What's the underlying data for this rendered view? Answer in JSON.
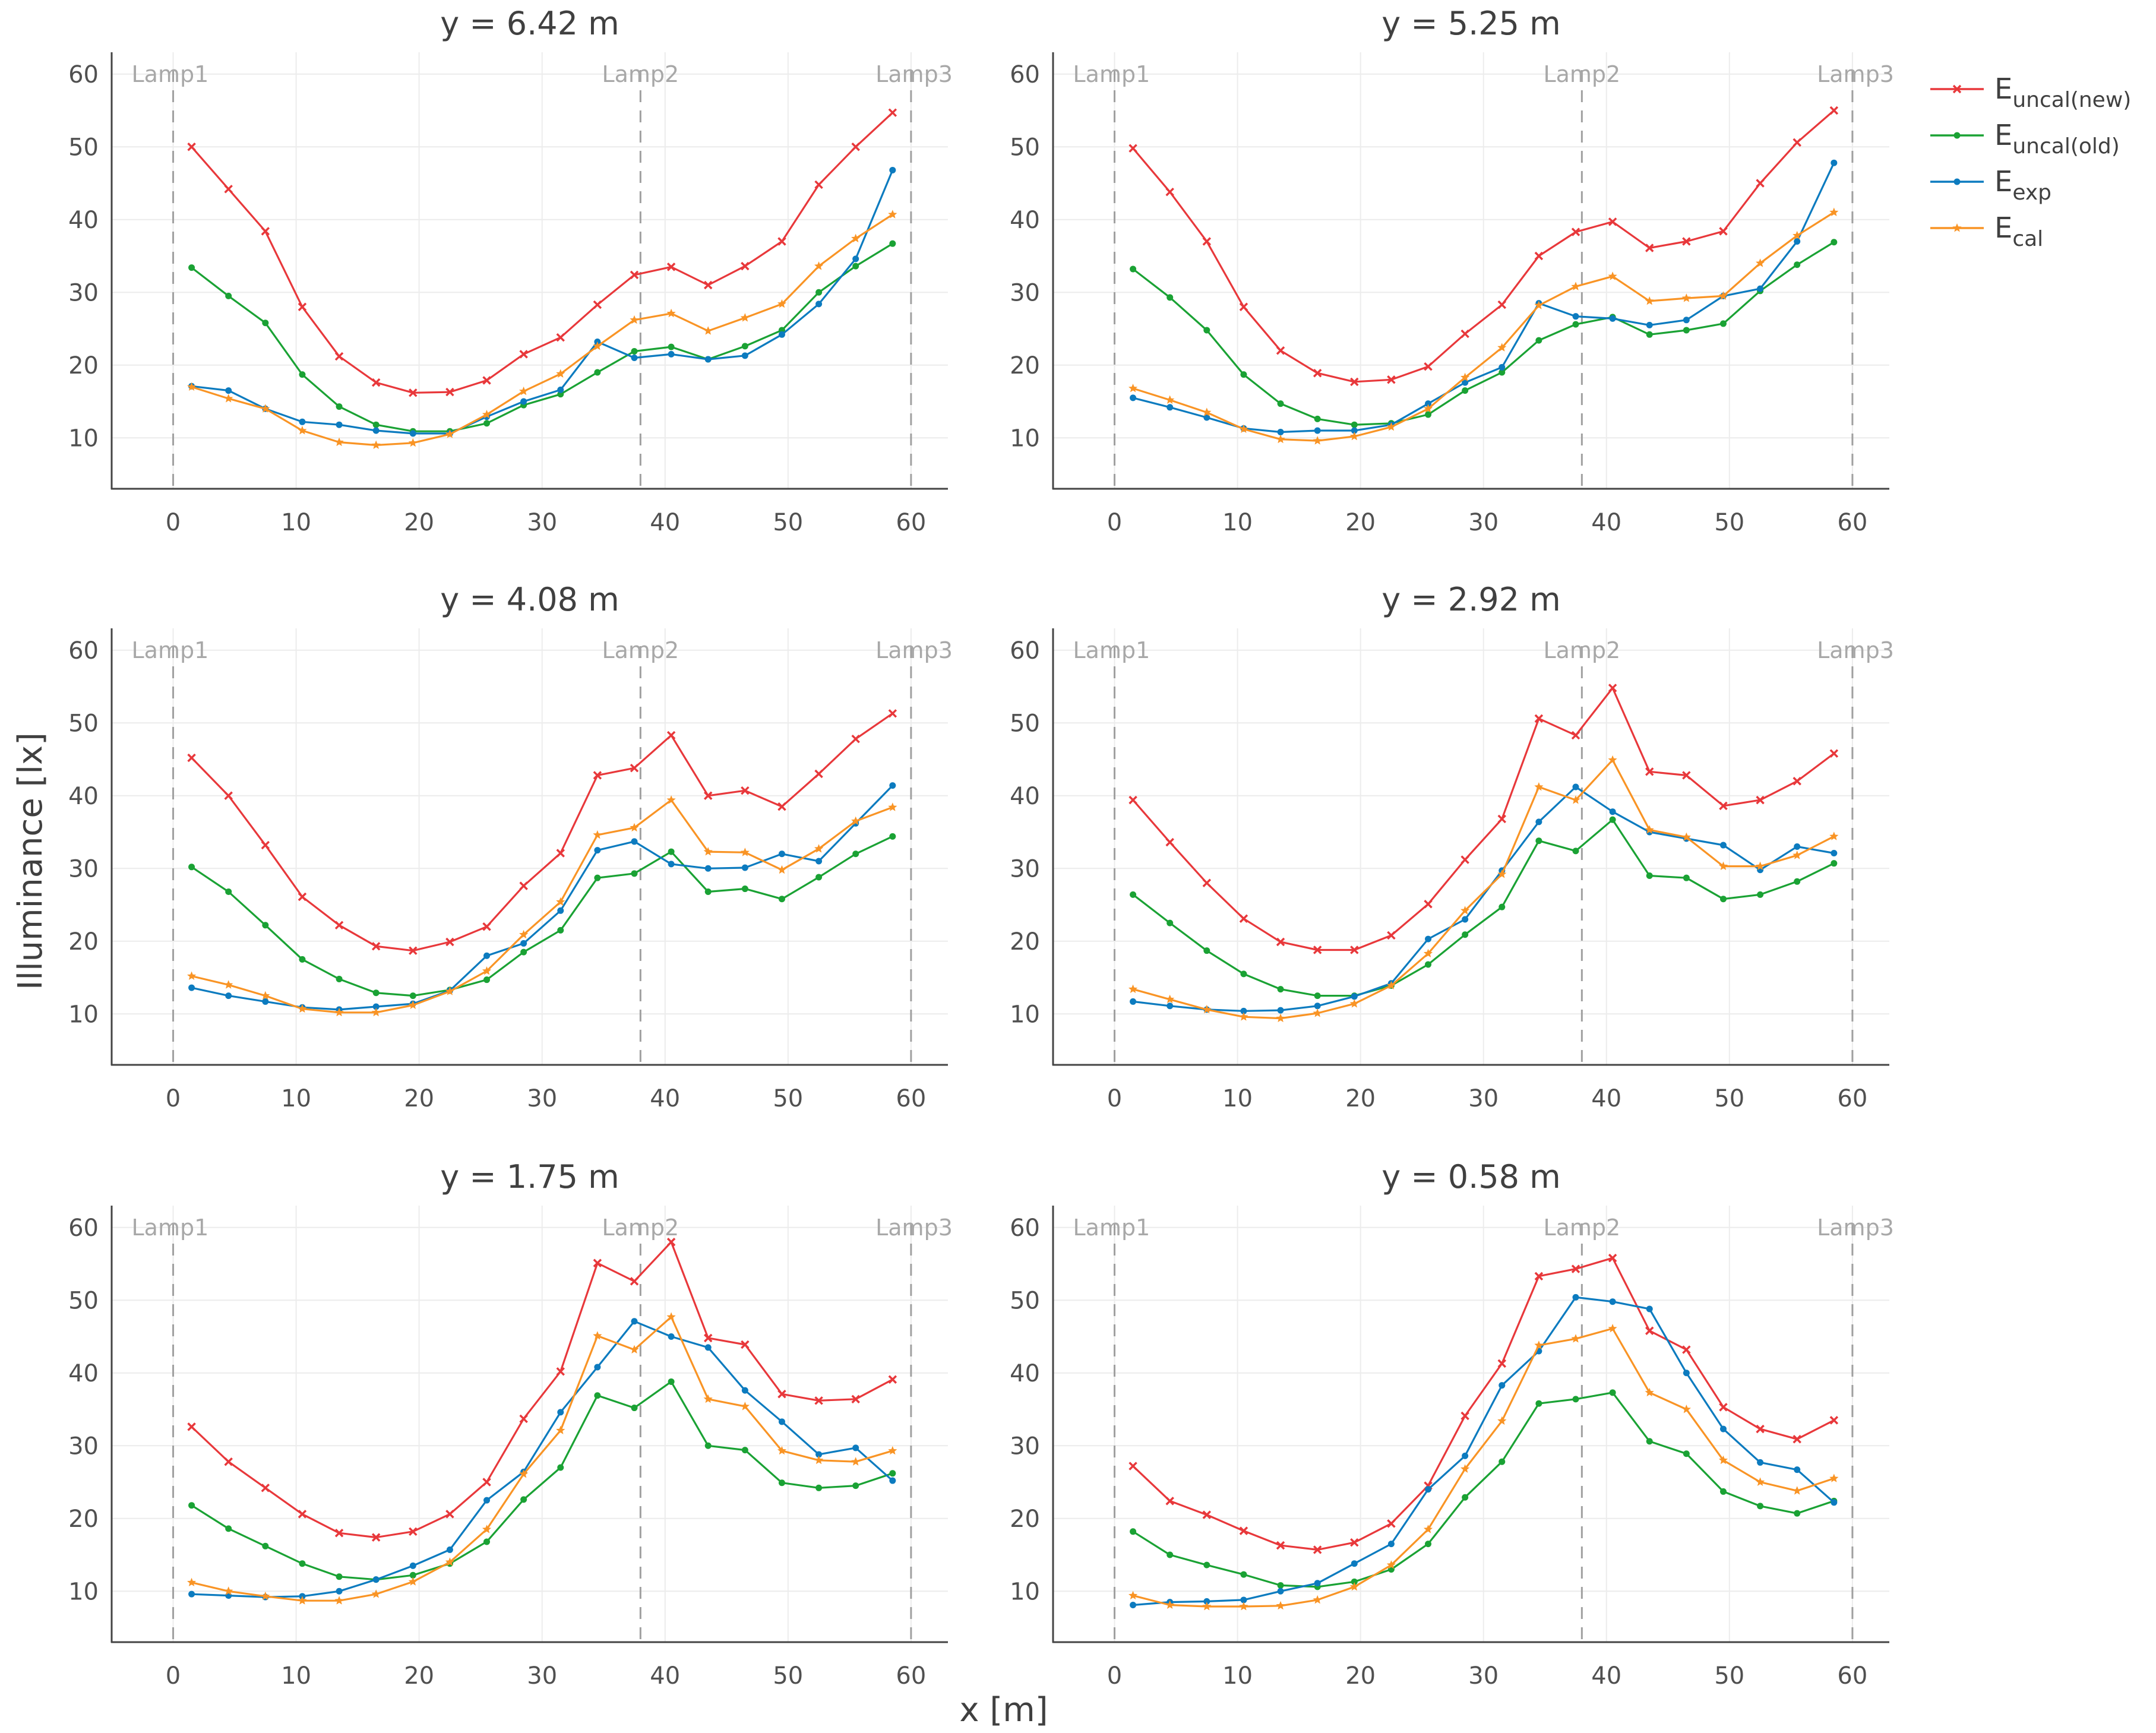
{
  "chart_data": {
    "type": "line",
    "xlabel": "x [m]",
    "ylabel": "Illuminance [lx]",
    "xlim": [
      -5,
      63
    ],
    "ylim": [
      3,
      63
    ],
    "xticks": [
      0,
      10,
      20,
      30,
      40,
      50,
      60
    ],
    "yticks": [
      10,
      20,
      30,
      40,
      50,
      60
    ],
    "lamps": [
      {
        "label": "Lamp1",
        "x": 0
      },
      {
        "label": "Lamp2",
        "x": 38
      },
      {
        "label": "Lamp3",
        "x": 60
      }
    ],
    "x": [
      1.5,
      4.5,
      7.5,
      10.5,
      13.5,
      16.5,
      19.5,
      22.5,
      25.5,
      28.5,
      31.5,
      34.5,
      37.5,
      40.5,
      43.5,
      46.5,
      49.5,
      52.5,
      55.5,
      58.5
    ],
    "series_meta": [
      {
        "key": "uncal_new",
        "base": "E",
        "sub": "uncal(new)",
        "color": "#e8383b",
        "marker": "x"
      },
      {
        "key": "uncal_old",
        "base": "E",
        "sub": "uncal(old)",
        "color": "#1aa234",
        "marker": "dot"
      },
      {
        "key": "exp",
        "base": "E",
        "sub": "exp",
        "color": "#0c7bbf",
        "marker": "dot"
      },
      {
        "key": "cal",
        "base": "E",
        "sub": "cal",
        "color": "#f99425",
        "marker": "star"
      }
    ],
    "panels": [
      {
        "title": "y = 6.42 m",
        "series": {
          "uncal_new": [
            50.0,
            44.2,
            38.4,
            28.0,
            21.2,
            17.6,
            16.2,
            16.3,
            17.9,
            21.5,
            23.8,
            28.3,
            32.4,
            33.5,
            31.0,
            33.6,
            37.0,
            44.8,
            50.0,
            54.7
          ],
          "uncal_old": [
            33.4,
            29.5,
            25.8,
            18.7,
            14.3,
            11.8,
            10.9,
            10.9,
            12.0,
            14.5,
            16.0,
            19.0,
            21.9,
            22.5,
            20.8,
            22.6,
            24.8,
            30.0,
            33.6,
            36.7
          ],
          "exp": [
            17.1,
            16.5,
            14.0,
            12.2,
            11.8,
            11.0,
            10.6,
            10.6,
            12.9,
            15.0,
            16.6,
            23.2,
            21.0,
            21.5,
            20.8,
            21.3,
            24.2,
            28.4,
            34.6,
            46.8
          ],
          "cal": [
            17.0,
            15.4,
            14.0,
            11.0,
            9.4,
            9.0,
            9.3,
            10.5,
            13.2,
            16.4,
            18.8,
            22.6,
            26.2,
            27.1,
            24.7,
            26.5,
            28.4,
            33.6,
            37.4,
            40.7
          ]
        }
      },
      {
        "title": "y = 5.25 m",
        "series": {
          "uncal_new": [
            49.8,
            43.8,
            37.0,
            28.0,
            22.0,
            18.9,
            17.7,
            18.0,
            19.8,
            24.3,
            28.3,
            35.0,
            38.3,
            39.7,
            36.1,
            37.0,
            38.4,
            45.0,
            50.6,
            55.0
          ],
          "uncal_old": [
            33.2,
            29.3,
            24.8,
            18.7,
            14.7,
            12.6,
            11.8,
            12.0,
            13.2,
            16.5,
            19.0,
            23.4,
            25.6,
            26.6,
            24.2,
            24.8,
            25.7,
            30.2,
            33.8,
            36.9
          ],
          "exp": [
            15.5,
            14.2,
            12.8,
            11.3,
            10.8,
            11.0,
            11.0,
            11.8,
            14.7,
            17.6,
            19.7,
            28.5,
            26.7,
            26.4,
            25.5,
            26.2,
            29.5,
            30.5,
            37.0,
            47.8
          ],
          "cal": [
            16.8,
            15.2,
            13.5,
            11.2,
            9.8,
            9.6,
            10.2,
            11.5,
            14.0,
            18.3,
            22.4,
            28.2,
            30.8,
            32.2,
            28.8,
            29.2,
            29.5,
            34.0,
            37.8,
            41.0
          ]
        }
      },
      {
        "title": "y = 4.08 m",
        "series": {
          "uncal_new": [
            45.2,
            40.0,
            33.2,
            26.1,
            22.2,
            19.3,
            18.7,
            19.9,
            22.0,
            27.6,
            32.1,
            42.8,
            43.8,
            48.3,
            40.0,
            40.7,
            38.5,
            43.0,
            47.8,
            51.3
          ],
          "uncal_old": [
            30.2,
            26.8,
            22.2,
            17.5,
            14.8,
            12.9,
            12.5,
            13.3,
            14.7,
            18.5,
            21.5,
            28.7,
            29.3,
            32.3,
            26.8,
            27.2,
            25.8,
            28.8,
            32.0,
            34.4
          ],
          "exp": [
            13.6,
            12.5,
            11.7,
            10.9,
            10.6,
            11.0,
            11.4,
            13.2,
            18.0,
            19.7,
            24.2,
            32.5,
            33.7,
            30.6,
            30.0,
            30.1,
            32.0,
            31.0,
            36.2,
            41.4
          ],
          "cal": [
            15.2,
            14.0,
            12.5,
            10.7,
            10.2,
            10.2,
            11.2,
            13.1,
            15.9,
            20.9,
            25.4,
            34.6,
            35.6,
            39.4,
            32.3,
            32.2,
            29.8,
            32.7,
            36.5,
            38.4
          ]
        }
      },
      {
        "title": "y = 2.92 m",
        "series": {
          "uncal_new": [
            39.4,
            33.6,
            28.0,
            23.1,
            19.9,
            18.8,
            18.8,
            20.8,
            25.1,
            31.2,
            36.8,
            50.6,
            48.3,
            54.8,
            43.3,
            42.8,
            38.6,
            39.4,
            42.0,
            45.8
          ],
          "uncal_old": [
            26.4,
            22.5,
            18.7,
            15.5,
            13.4,
            12.5,
            12.5,
            13.9,
            16.8,
            20.9,
            24.7,
            33.8,
            32.4,
            36.7,
            29.0,
            28.7,
            25.8,
            26.4,
            28.2,
            30.7
          ],
          "exp": [
            11.7,
            11.1,
            10.6,
            10.4,
            10.5,
            11.1,
            12.4,
            14.2,
            20.3,
            23.0,
            29.7,
            36.4,
            41.2,
            37.8,
            35.0,
            34.1,
            33.2,
            29.8,
            33.0,
            32.1
          ],
          "cal": [
            13.4,
            12.0,
            10.6,
            9.6,
            9.4,
            10.1,
            11.4,
            13.9,
            18.3,
            24.2,
            29.2,
            41.2,
            39.4,
            44.9,
            35.3,
            34.3,
            30.3,
            30.3,
            31.8,
            34.4
          ]
        }
      },
      {
        "title": "y = 1.75 m",
        "series": {
          "uncal_new": [
            32.6,
            27.8,
            24.2,
            20.6,
            18.0,
            17.4,
            18.2,
            20.6,
            25.0,
            33.7,
            40.2,
            55.1,
            52.6,
            58.0,
            44.8,
            43.9,
            37.1,
            36.2,
            36.4,
            39.1
          ],
          "uncal_old": [
            21.8,
            18.6,
            16.2,
            13.8,
            12.0,
            11.6,
            12.2,
            13.8,
            16.8,
            22.6,
            27.0,
            36.9,
            35.2,
            38.8,
            30.0,
            29.4,
            24.9,
            24.2,
            24.5,
            26.2
          ],
          "exp": [
            9.6,
            9.4,
            9.2,
            9.3,
            10.0,
            11.6,
            13.5,
            15.7,
            22.5,
            26.4,
            34.6,
            40.8,
            47.1,
            45.0,
            43.5,
            37.6,
            33.3,
            28.8,
            29.7,
            25.2
          ],
          "cal": [
            11.2,
            10.0,
            9.3,
            8.7,
            8.7,
            9.6,
            11.3,
            14.0,
            18.5,
            26.1,
            32.1,
            45.1,
            43.2,
            47.7,
            36.4,
            35.4,
            29.3,
            28.0,
            27.8,
            29.3
          ]
        }
      },
      {
        "title": "y = 0.58 m",
        "series": {
          "uncal_new": [
            27.2,
            22.4,
            20.5,
            18.3,
            16.3,
            15.7,
            16.7,
            19.3,
            24.5,
            34.1,
            41.3,
            53.3,
            54.3,
            55.8,
            45.8,
            43.2,
            35.3,
            32.3,
            30.9,
            33.5
          ],
          "uncal_old": [
            18.2,
            15.0,
            13.6,
            12.3,
            10.8,
            10.6,
            11.3,
            13.0,
            16.5,
            22.9,
            27.8,
            35.8,
            36.4,
            37.3,
            30.6,
            28.9,
            23.7,
            21.7,
            20.7,
            22.4
          ],
          "exp": [
            8.1,
            8.5,
            8.6,
            8.8,
            10.0,
            11.1,
            13.8,
            16.5,
            24.0,
            28.6,
            38.3,
            43.0,
            50.4,
            49.8,
            48.8,
            40.0,
            32.3,
            27.7,
            26.7,
            22.2
          ],
          "cal": [
            9.4,
            8.1,
            7.9,
            7.9,
            8.0,
            8.8,
            10.6,
            13.6,
            18.5,
            26.8,
            33.4,
            43.8,
            44.7,
            46.1,
            37.3,
            35.0,
            28.0,
            25.0,
            23.8,
            25.5
          ]
        }
      }
    ]
  }
}
